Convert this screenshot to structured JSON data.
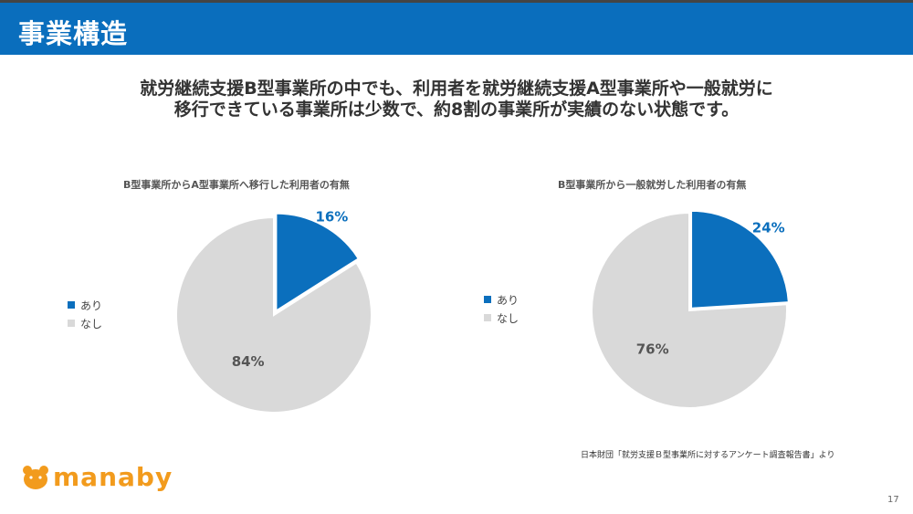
{
  "header": {
    "title": "事業構造"
  },
  "subtitle": {
    "line1": "就労継続支援B型事業所の中でも、利用者を就労継続支援A型事業所や一般就労に",
    "line2": "移行できている事業所は少数で、約8割の事業所が実績のない状態です。"
  },
  "colors": {
    "header": "#0a6ebd",
    "accent": "#0b6fbd",
    "neutral": "#d9d9d9",
    "logo": "#f29b1d"
  },
  "chart_data": [
    {
      "type": "pie",
      "title": "B型事業所からA型事業所へ移行した利用者の有無",
      "categories": [
        "あり",
        "なし"
      ],
      "values": [
        16,
        84
      ],
      "labels": [
        "16%",
        "84%"
      ],
      "colors": [
        "#0b6fbd",
        "#d9d9d9"
      ],
      "legend_position": "left"
    },
    {
      "type": "pie",
      "title": "B型事業所から一般就労した利用者の有無",
      "categories": [
        "あり",
        "なし"
      ],
      "values": [
        24,
        76
      ],
      "labels": [
        "24%",
        "76%"
      ],
      "colors": [
        "#0b6fbd",
        "#d9d9d9"
      ],
      "legend_position": "left"
    }
  ],
  "source": "日本財団「就労支援Ｂ型事業所に対するアンケート調査報告書」より",
  "logo": {
    "text": "manaby",
    "icon": "bear-icon"
  },
  "page_number": "17"
}
